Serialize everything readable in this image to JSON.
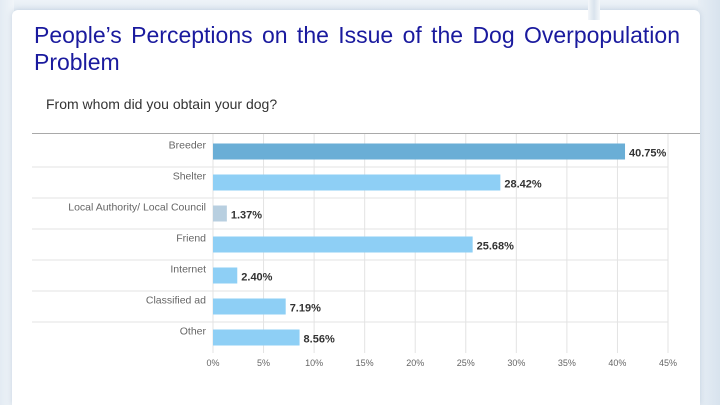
{
  "slide": {
    "title": "People’s Perceptions on the Issue of the Dog Overpopulation Problem",
    "question": "From whom did you obtain your dog?"
  },
  "colors": {
    "title_text": "#1a1a9e",
    "bar_highlight": "#6aaed6",
    "bar_default": "#8ecff5",
    "bar_small": "#b8cfe0",
    "grid": "#e3e3e3",
    "label_text": "#666666",
    "value_text": "#333333"
  },
  "chart_data": {
    "type": "bar",
    "orientation": "horizontal",
    "categories": [
      "Breeder",
      "Shelter",
      "Local Authority/ Local Council",
      "Friend",
      "Internet",
      "Classified ad",
      "Other"
    ],
    "values": [
      40.75,
      28.42,
      1.37,
      25.68,
      2.4,
      7.19,
      8.56
    ],
    "value_labels": [
      "40.75%",
      "28.42%",
      "1.37%",
      "25.68%",
      "2.40%",
      "7.19%",
      "8.56%"
    ],
    "highlighted_category": "Breeder",
    "xlim": [
      0,
      45
    ],
    "xticks": [
      "0%",
      "5%",
      "10%",
      "15%",
      "20%",
      "25%",
      "30%",
      "35%",
      "40%",
      "45%"
    ],
    "grid": true
  }
}
